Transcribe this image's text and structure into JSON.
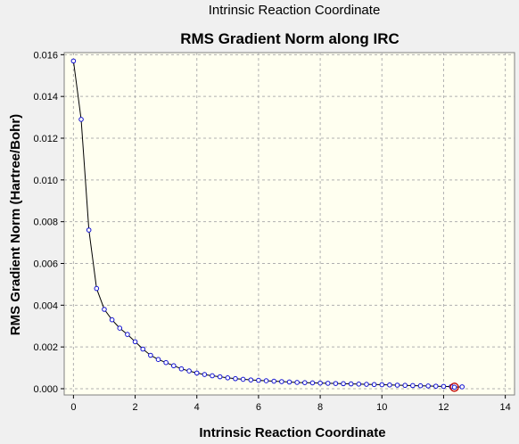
{
  "window": {
    "title": "Intrinsic Reaction Coordinate"
  },
  "colors": {
    "background": "#f0f0f0",
    "plot_background": "#fffff0",
    "grid": "#b0b0b0",
    "line": "#000000",
    "point_fill": "#ffffff",
    "point_stroke": "#1010d0",
    "highlight_marker": "#c00000"
  },
  "chart_data": {
    "type": "line",
    "title": "RMS Gradient Norm along IRC",
    "xlabel": "Intrinsic Reaction Coordinate",
    "ylabel": "RMS Gradient Norm (Hartree/Bohr)",
    "xlim": [
      -0.3,
      14.3
    ],
    "ylim": [
      -0.0003,
      0.0161
    ],
    "xticks": [
      "0",
      "2",
      "4",
      "6",
      "8",
      "10",
      "12",
      "14"
    ],
    "yticks": [
      "0.000",
      "0.002",
      "0.004",
      "0.006",
      "0.008",
      "0.010",
      "0.012",
      "0.014",
      "0.016"
    ],
    "grid": true,
    "marker": "circle",
    "highlighted_point": {
      "x": 12.35,
      "y": 7e-05
    },
    "series": [
      {
        "x": [
          0.0,
          0.25,
          0.5,
          0.75,
          1.0,
          1.25,
          1.5,
          1.75,
          2.0,
          2.25,
          2.5,
          2.75,
          3.0,
          3.25,
          3.5,
          3.75,
          4.0,
          4.25,
          4.5,
          4.75,
          5.0,
          5.25,
          5.5,
          5.75,
          6.0,
          6.25,
          6.5,
          6.75,
          7.0,
          7.25,
          7.5,
          7.75,
          8.0,
          8.25,
          8.5,
          8.75,
          9.0,
          9.25,
          9.5,
          9.75,
          10.0,
          10.25,
          10.5,
          10.75,
          11.0,
          11.25,
          11.5,
          11.75,
          12.0,
          12.25,
          12.35,
          12.6
        ],
        "values": [
          0.0157,
          0.0129,
          0.0076,
          0.0048,
          0.0038,
          0.0033,
          0.0029,
          0.0026,
          0.00225,
          0.0019,
          0.0016,
          0.0014,
          0.00125,
          0.0011,
          0.00095,
          0.00085,
          0.00075,
          0.00068,
          0.00062,
          0.00057,
          0.00052,
          0.00048,
          0.00045,
          0.00042,
          0.0004,
          0.00038,
          0.00036,
          0.00034,
          0.00032,
          0.0003,
          0.00029,
          0.00028,
          0.00027,
          0.00026,
          0.00025,
          0.00024,
          0.00023,
          0.00022,
          0.00021,
          0.0002,
          0.00019,
          0.00018,
          0.00017,
          0.00016,
          0.00015,
          0.00014,
          0.00013,
          0.00012,
          0.00011,
          0.0001,
          7e-05,
          9e-05
        ]
      }
    ]
  }
}
